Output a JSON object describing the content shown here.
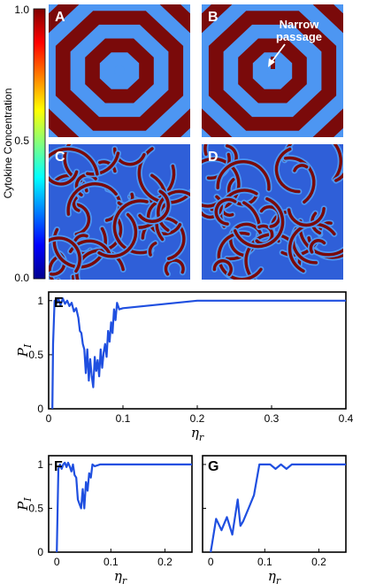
{
  "colorbar": {
    "label": "Cytokine Concentration",
    "ticks": [
      "1.0",
      "0.5",
      "0.0"
    ],
    "colors": [
      "#00008f",
      "#0000ff",
      "#0080ff",
      "#00ffff",
      "#80ff80",
      "#ffff00",
      "#ff8000",
      "#ff0000",
      "#800000"
    ]
  },
  "maps": [
    {
      "letter": "A",
      "pattern": "spiral"
    },
    {
      "letter": "B",
      "pattern": "spiral-defect",
      "annotation": [
        "Narrow",
        "passage"
      ]
    },
    {
      "letter": "C",
      "pattern": "turbulent"
    },
    {
      "letter": "D",
      "pattern": "turbulent"
    }
  ],
  "map_colors": {
    "dark_red": "#7a0a0a",
    "light_blue": "#4d96f2",
    "blue": "#2f5fd8",
    "dark_blue": "#1a3bb0"
  },
  "line_color": "#1f4fe0",
  "chart_data": [
    {
      "type": "line",
      "panel": "E",
      "xlabel": "η_r",
      "ylabel": "P_I",
      "xlim": [
        0,
        0.4
      ],
      "ylim": [
        0,
        1.08
      ],
      "xticks": [
        0,
        0.1,
        0.2,
        0.3,
        0.4
      ],
      "xtick_labels": [
        "0",
        "0.1",
        "0.2",
        "0.3",
        "0.4"
      ],
      "yticks": [
        0,
        0.5,
        1
      ],
      "ytick_labels": [
        "0",
        "0.5",
        "1"
      ],
      "x": [
        0.005,
        0.006,
        0.008,
        0.01,
        0.013,
        0.016,
        0.019,
        0.022,
        0.025,
        0.028,
        0.031,
        0.034,
        0.037,
        0.04,
        0.042,
        0.044,
        0.046,
        0.048,
        0.05,
        0.052,
        0.054,
        0.056,
        0.058,
        0.06,
        0.062,
        0.064,
        0.066,
        0.068,
        0.07,
        0.072,
        0.074,
        0.076,
        0.078,
        0.08,
        0.082,
        0.084,
        0.086,
        0.088,
        0.09,
        0.092,
        0.095,
        0.1,
        0.2,
        0.4
      ],
      "y": [
        0.0,
        0.6,
        1.0,
        0.97,
        1.02,
        0.96,
        1.02,
        0.97,
        1.0,
        0.95,
        0.98,
        0.9,
        0.93,
        0.84,
        0.72,
        0.7,
        0.6,
        0.55,
        0.33,
        0.55,
        0.26,
        0.46,
        0.3,
        0.2,
        0.48,
        0.35,
        0.45,
        0.3,
        0.55,
        0.38,
        0.52,
        0.6,
        0.48,
        0.72,
        0.62,
        0.8,
        0.7,
        0.92,
        0.82,
        0.98,
        0.92,
        0.93,
        1.0,
        1.0
      ]
    },
    {
      "type": "line",
      "panel": "F",
      "xlabel": "η_r",
      "ylabel": "P_I",
      "xlim": [
        -0.015,
        0.25
      ],
      "ylim": [
        0,
        1.1
      ],
      "xticks": [
        0,
        0.1,
        0.2
      ],
      "xtick_labels": [
        "0",
        "0.1",
        "0.2"
      ],
      "yticks": [
        0,
        0.5,
        1
      ],
      "ytick_labels": [
        "0",
        "0.5",
        "1"
      ],
      "x": [
        0.0,
        0.003,
        0.006,
        0.009,
        0.012,
        0.015,
        0.018,
        0.021,
        0.024,
        0.027,
        0.03,
        0.033,
        0.036,
        0.039,
        0.042,
        0.045,
        0.048,
        0.051,
        0.054,
        0.057,
        0.06,
        0.063,
        0.066,
        0.07,
        0.08,
        0.1,
        0.25
      ],
      "y": [
        0.0,
        0.95,
        1.0,
        0.95,
        1.0,
        1.02,
        0.97,
        1.02,
        0.98,
        0.92,
        1.0,
        0.88,
        0.85,
        0.6,
        0.55,
        0.5,
        0.72,
        0.5,
        0.8,
        0.7,
        0.9,
        0.85,
        1.0,
        0.98,
        1.0,
        1.0,
        1.0
      ]
    },
    {
      "type": "line",
      "panel": "G",
      "xlabel": "η_r",
      "ylabel": "",
      "xlim": [
        -0.015,
        0.25
      ],
      "ylim": [
        0,
        1.1
      ],
      "xticks": [
        0,
        0.1,
        0.2
      ],
      "xtick_labels": [
        "0",
        "0.1",
        "0.2"
      ],
      "yticks": [
        0,
        0.5,
        1
      ],
      "ytick_labels": [
        "",
        "",
        ""
      ],
      "x": [
        0.0,
        0.01,
        0.02,
        0.03,
        0.04,
        0.05,
        0.055,
        0.06,
        0.07,
        0.08,
        0.09,
        0.1,
        0.11,
        0.12,
        0.13,
        0.14,
        0.15,
        0.16,
        0.25
      ],
      "y": [
        0.0,
        0.38,
        0.25,
        0.4,
        0.2,
        0.6,
        0.3,
        0.35,
        0.5,
        0.65,
        1.0,
        1.0,
        1.0,
        0.95,
        1.0,
        0.95,
        1.0,
        1.0,
        1.0
      ]
    }
  ]
}
